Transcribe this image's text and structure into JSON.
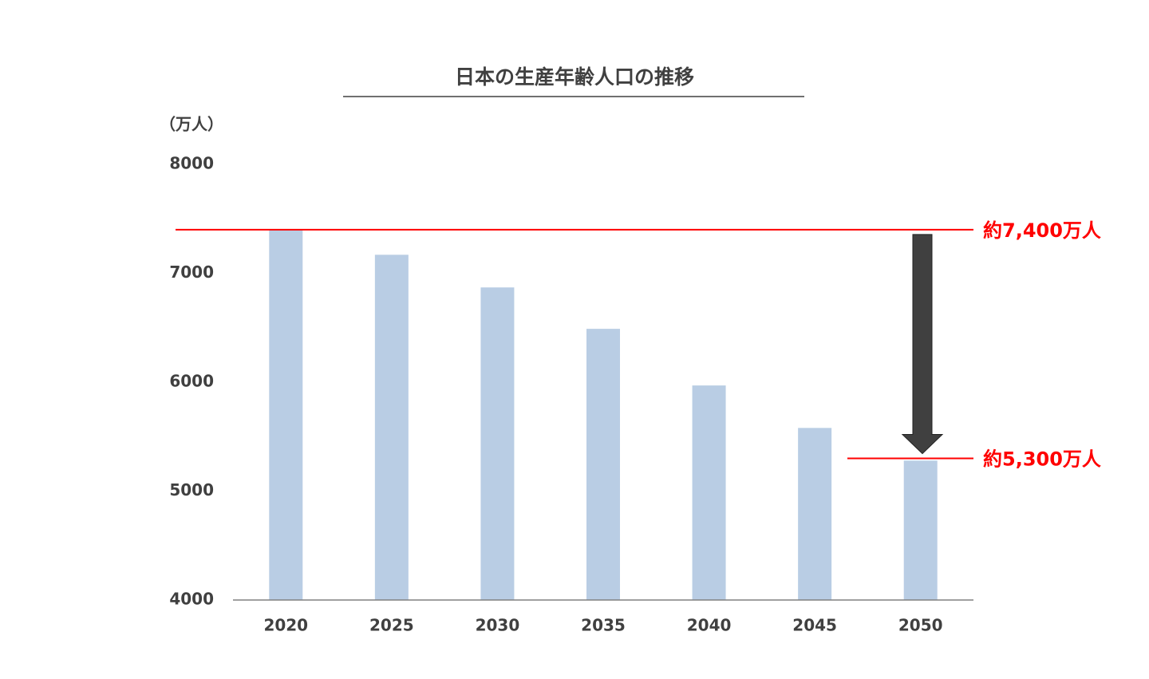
{
  "chart_data": {
    "type": "bar",
    "title": "日本の生産年齢人口の推移",
    "y_label": "（万人）",
    "categories": [
      "2020",
      "2025",
      "2030",
      "2035",
      "2040",
      "2045",
      "2050"
    ],
    "values": [
      7400,
      7170,
      6870,
      6490,
      5970,
      5580,
      5280
    ],
    "color": "#b9cde4",
    "ylim": [
      4000,
      8000
    ],
    "yticks": [
      4000,
      5000,
      6000,
      7000,
      8000
    ],
    "grid": false,
    "annotations": [
      {
        "text": "約7,400万人",
        "value": 7400,
        "color": "#ff0000"
      },
      {
        "text": "約5,300万人",
        "value": 5300,
        "color": "#ff0000"
      }
    ]
  }
}
